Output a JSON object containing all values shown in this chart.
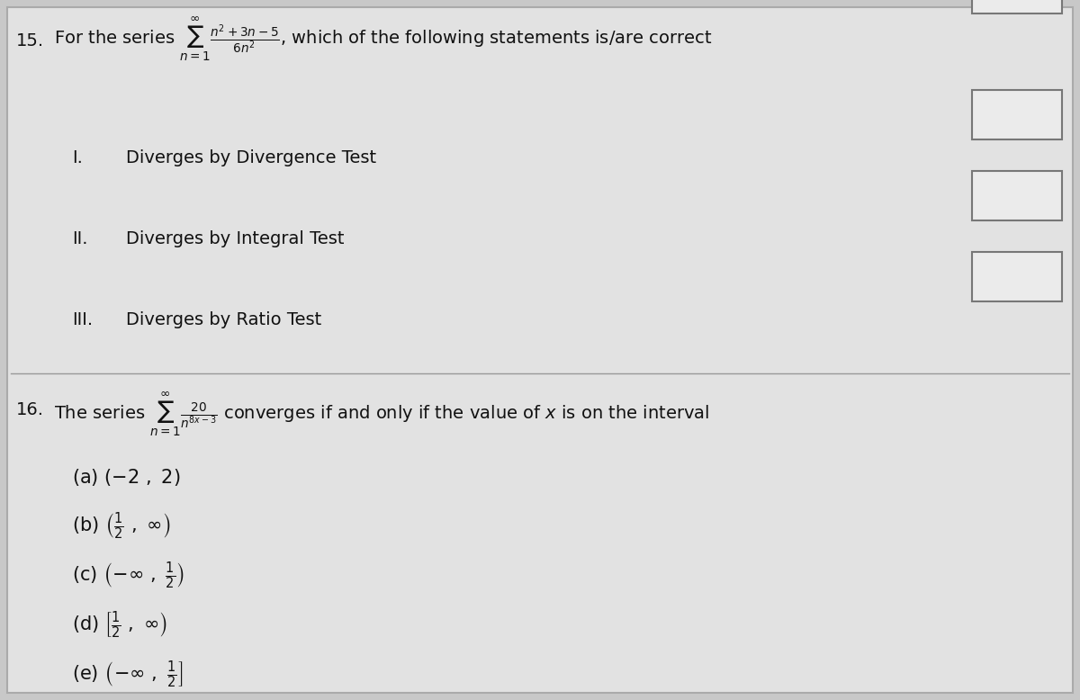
{
  "background_color": "#c8c8c8",
  "content_bg": "#e2e2e2",
  "q15_number": "15.",
  "q15_text_full": "For the series $\\sum_{n=1}^{\\infty}\\frac{n^2+3n-5}{6n^2}$, which of the following statements is/are correct",
  "items": [
    {
      "label": "I.",
      "text": "Diverges by Divergence Test"
    },
    {
      "label": "II.",
      "text": "Diverges by Integral Test"
    },
    {
      "label": "III.",
      "text": "Diverges by Ratio Test"
    }
  ],
  "q16_text_full": "The series $\\sum_{n=1}^{\\infty}\\frac{20}{n^{8x-3}}$ converges if and only if the value of $x$ is on the interval",
  "q16_number": "16.",
  "options": [
    "(a) $(-2\\ ,\\ 2)$",
    "(b) $\\left(\\frac{1}{2}\\ ,\\ \\infty\\right)$",
    "(c) $\\left(-\\infty\\ ,\\ \\frac{1}{2}\\right)$",
    "(d) $\\left[\\frac{1}{2}\\ ,\\ \\infty\\right)$",
    "(e) $\\left(-\\infty\\ ,\\ \\frac{1}{2}\\right]$"
  ],
  "box_color": "#ebebeb",
  "box_edge_color": "#777777",
  "divider_color": "#999999",
  "text_color": "#111111",
  "font_size": 14
}
